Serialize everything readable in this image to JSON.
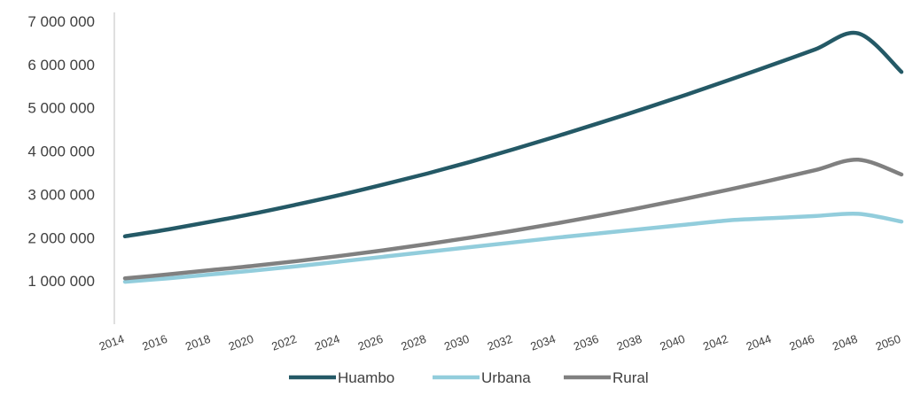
{
  "chart_data": {
    "type": "line",
    "title": "",
    "xlabel": "",
    "ylabel": "",
    "x": [
      2014,
      2016,
      2018,
      2020,
      2022,
      2024,
      2026,
      2028,
      2030,
      2032,
      2034,
      2036,
      2038,
      2040,
      2042,
      2044,
      2046,
      2048,
      2050
    ],
    "x_tick_labels": [
      "2014",
      "2016",
      "2018",
      "2020",
      "2022",
      "2024",
      "2026",
      "2028",
      "2030",
      "2032",
      "2034",
      "2036",
      "2038",
      "2040",
      "2042",
      "2044",
      "2046",
      "2048",
      "2050"
    ],
    "ylim": [
      0,
      7000000
    ],
    "y_ticks": [
      1000000,
      2000000,
      3000000,
      4000000,
      5000000,
      6000000,
      7000000
    ],
    "y_tick_labels": [
      "1 000 000",
      "2 000 000",
      "3 000 000",
      "4 000 000",
      "5 000 000",
      "6 000 000",
      "7 000 000"
    ],
    "grid": false,
    "legend_position": "bottom",
    "series": [
      {
        "name": "Huambo",
        "color": "#245966",
        "values": [
          2030000,
          2190000,
          2370000,
          2560000,
          2770000,
          2990000,
          3230000,
          3480000,
          3750000,
          4040000,
          4340000,
          4650000,
          4970000,
          5300000,
          5640000,
          5990000,
          6350000,
          6720000,
          5830000
        ]
      },
      {
        "name": "Urbana",
        "color": "#92cddc",
        "values": [
          980000,
          1060000,
          1150000,
          1240000,
          1340000,
          1450000,
          1560000,
          1670000,
          1780000,
          1890000,
          2000000,
          2100000,
          2200000,
          2300000,
          2400000,
          2450000,
          2500000,
          2550000,
          2370000
        ]
      },
      {
        "name": "Rural",
        "color": "#808080",
        "values": [
          1060000,
          1150000,
          1250000,
          1350000,
          1460000,
          1580000,
          1710000,
          1850000,
          2000000,
          2160000,
          2330000,
          2510000,
          2700000,
          2900000,
          3110000,
          3330000,
          3560000,
          3800000,
          3460000
        ]
      }
    ]
  }
}
